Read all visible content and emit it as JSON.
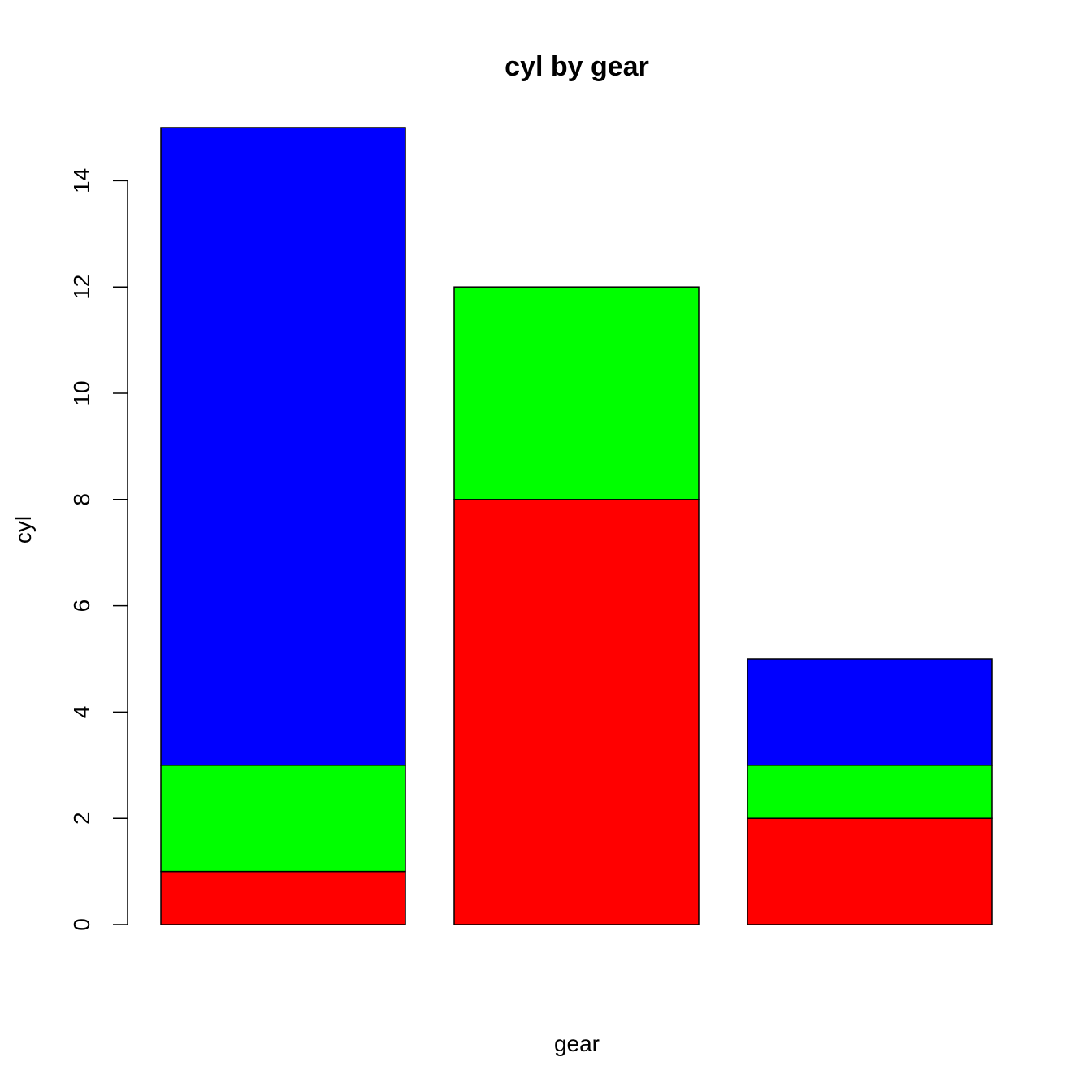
{
  "chart_data": {
    "type": "bar",
    "stacked": true,
    "title": "cyl by gear",
    "xlabel": "gear",
    "ylabel": "cyl",
    "ylim": [
      0,
      15
    ],
    "yticks": [
      0,
      2,
      4,
      6,
      8,
      10,
      12,
      14
    ],
    "categories": [
      "",
      "",
      ""
    ],
    "series": [
      {
        "name": "segment-1",
        "color": "#ff0000",
        "values": [
          1,
          8,
          2
        ]
      },
      {
        "name": "segment-2",
        "color": "#00ff00",
        "values": [
          2,
          4,
          1
        ]
      },
      {
        "name": "segment-3",
        "color": "#0000ff",
        "values": [
          12,
          0,
          2
        ]
      }
    ],
    "grid": false,
    "legend": "none"
  }
}
